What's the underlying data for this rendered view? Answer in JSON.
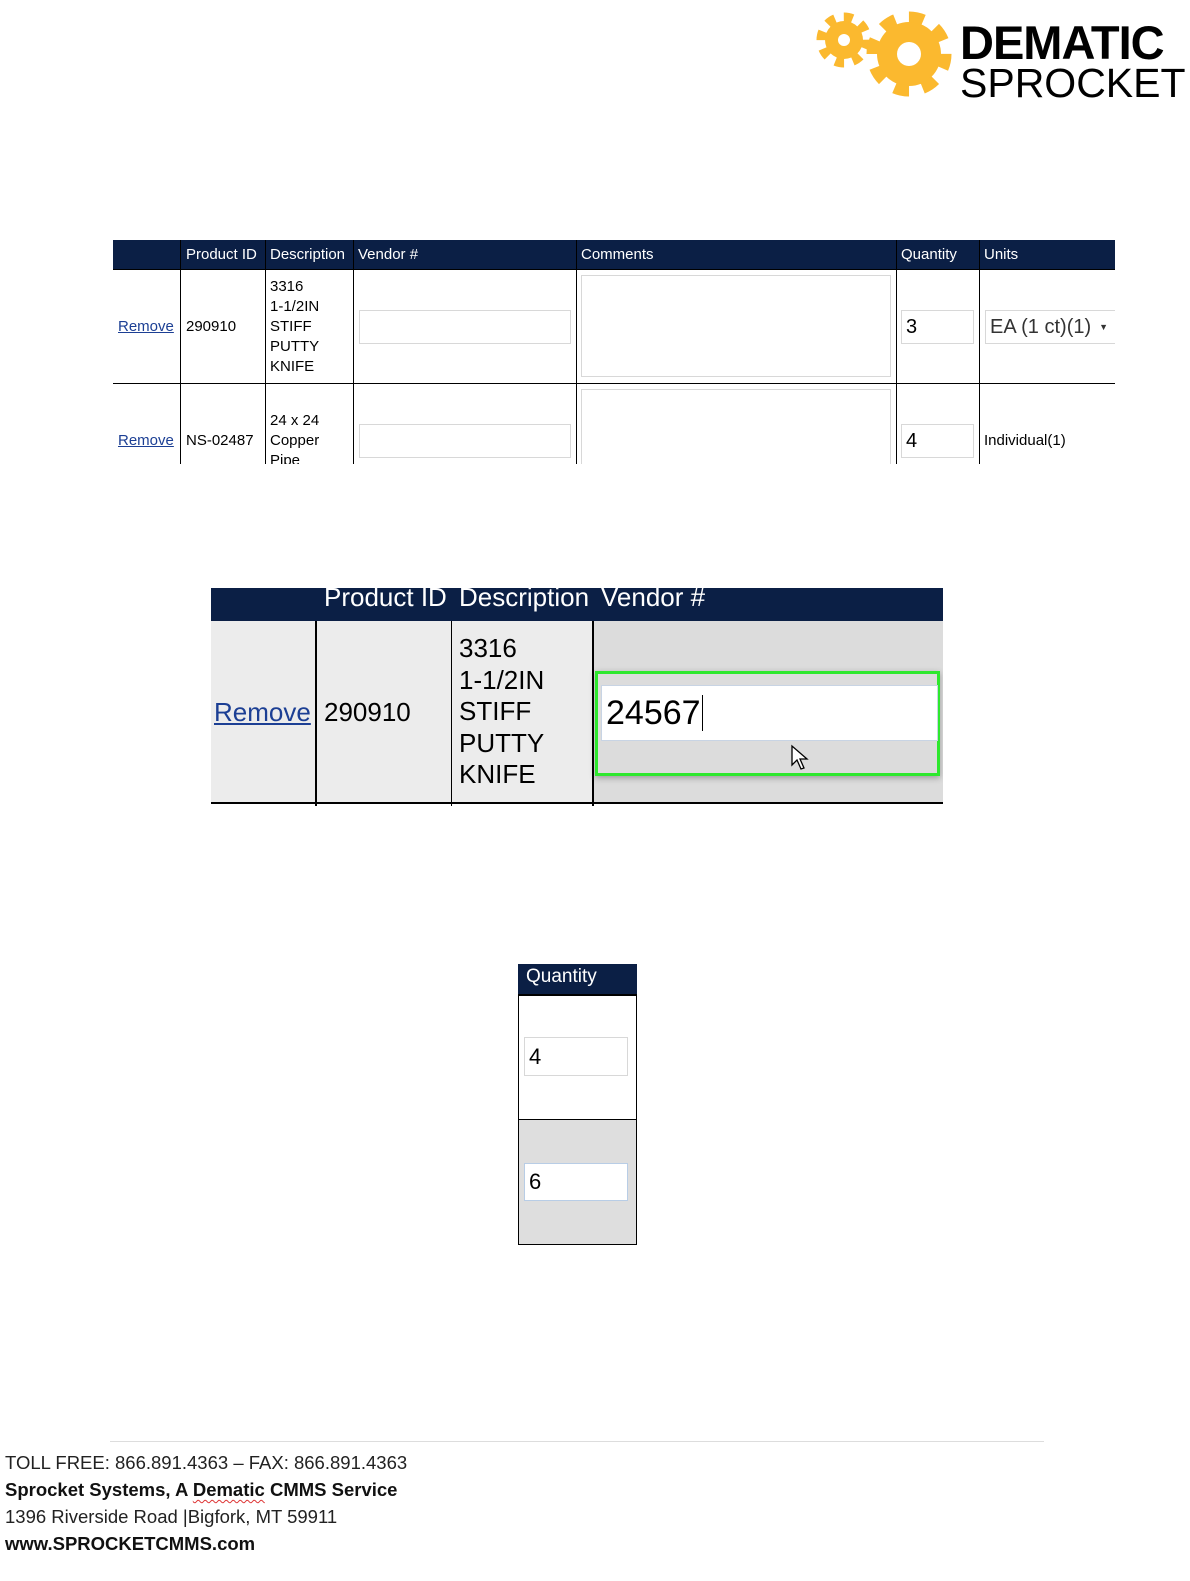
{
  "logo": {
    "line1": "DEMATIC",
    "line2": "SPROCKET",
    "gear_color": "#fbb92f"
  },
  "colors": {
    "header_bg": "#0b1f45",
    "link": "#1c3f94",
    "focus_border": "#2ee82e"
  },
  "table1": {
    "headers": [
      "",
      "Product ID",
      "Description",
      "Vendor #",
      "Comments",
      "Quantity",
      "Units"
    ],
    "rows": [
      {
        "action": "Remove",
        "product_id": "290910",
        "description": [
          "3316",
          "1-1/2IN",
          "STIFF",
          "PUTTY",
          "KNIFE"
        ],
        "vendor": "",
        "comments": "",
        "quantity": "3",
        "units": "EA (1 ct)(1)"
      },
      {
        "action": "Remove",
        "product_id": "NS-02487",
        "description": [
          "24 x 24",
          "Copper",
          "Pipe"
        ],
        "vendor": "",
        "comments": "",
        "quantity": "4",
        "units": "Individual(1)"
      }
    ]
  },
  "table2": {
    "headers": [
      "",
      "Product ID",
      "Description",
      "Vendor #"
    ],
    "row": {
      "action": "Remove",
      "product_id": "290910",
      "description": [
        "3316",
        "1-1/2IN",
        "STIFF",
        "PUTTY",
        "KNIFE"
      ],
      "vendor": "24567"
    }
  },
  "table3": {
    "header": "Quantity",
    "values": [
      "4",
      "6"
    ]
  },
  "footer": {
    "phone": "TOLL FREE: 866.891.4363 – FAX: 866.891.4363",
    "company_prefix": "Sprocket Systems, A ",
    "company_mid": "Dematic",
    "company_suffix": " CMMS Service",
    "address": "1396 Riverside  Road |Bigfork, MT 59911",
    "website": "www.SPROCKETCMMS.com"
  }
}
